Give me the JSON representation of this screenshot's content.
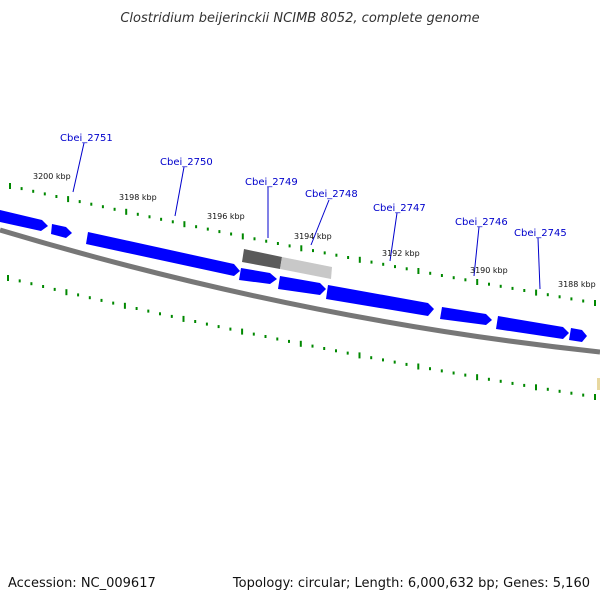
{
  "title": "Clostridium beijerinckii NCIMB 8052, complete genome",
  "footer": {
    "accession": "Accession: NC_009617",
    "summary": "Topology: circular; Length: 6,000,632 bp; Genes: 5,160"
  },
  "colors": {
    "gene": "#0000ff",
    "gene_light": "#4a4aff",
    "backbone": "#888888",
    "label": "#0000cc",
    "tick": "#008800",
    "selected_dark": "#5a5a5a",
    "selected_light": "#c8c8c8"
  },
  "gene_labels": [
    {
      "name": "Cbei_2751"
    },
    {
      "name": "Cbei_2750"
    },
    {
      "name": "Cbei_2749"
    },
    {
      "name": "Cbei_2748"
    },
    {
      "name": "Cbei_2747"
    },
    {
      "name": "Cbei_2746"
    },
    {
      "name": "Cbei_2745"
    }
  ],
  "kbp_labels": [
    {
      "text": "3200 kbp"
    },
    {
      "text": "3198 kbp"
    },
    {
      "text": "3196 kbp"
    },
    {
      "text": "3194 kbp"
    },
    {
      "text": "3192 kbp"
    },
    {
      "text": "3190 kbp"
    },
    {
      "text": "3188 kbp"
    }
  ]
}
